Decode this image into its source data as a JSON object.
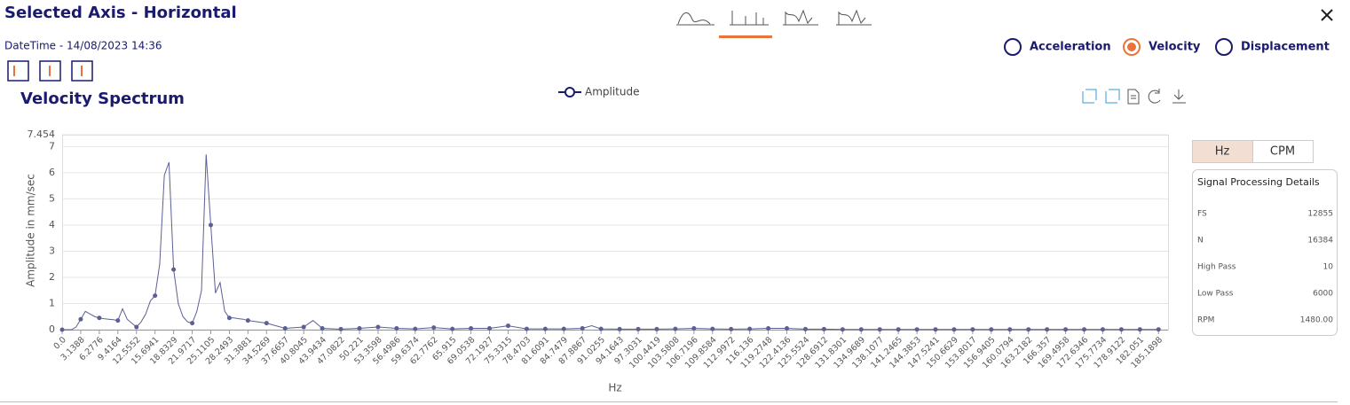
{
  "header": {
    "title": "Selected Axis - Horizontal",
    "datetime": "DateTime - 14/08/2023 14:36"
  },
  "measure_options": [
    {
      "label": "Acceleration",
      "selected": false
    },
    {
      "label": "Velocity",
      "selected": true
    },
    {
      "label": "Displacement",
      "selected": false
    }
  ],
  "unit_options": [
    {
      "label": "Hz",
      "selected": true
    },
    {
      "label": "CPM",
      "selected": false
    }
  ],
  "details": {
    "title": "Signal Processing Details",
    "rows": [
      [
        "FS",
        "12855"
      ],
      [
        "N",
        "16384"
      ],
      [
        "High Pass",
        "10"
      ],
      [
        "Low Pass",
        "6000"
      ],
      [
        "RPM",
        "1480.00"
      ]
    ]
  },
  "chart_data": {
    "type": "line",
    "title": "Velocity Spectrum",
    "x_label": "Hz",
    "y_label": "Amplitude in mm/sec",
    "grid": true,
    "x": [
      0,
      0.7847,
      1.5694,
      2.3541,
      3.1388,
      3.9235,
      4.7082,
      5.4929,
      6.2776,
      7.0623,
      7.8471,
      8.6318,
      9.4164,
      10.2011,
      10.9858,
      11.7705,
      12.5552,
      13.3399,
      14.1247,
      14.9094,
      15.6941,
      16.4788,
      17.2635,
      18.0482,
      18.8329,
      19.6176,
      20.4023,
      21.187,
      21.9717,
      22.7564,
      23.5411,
      24.3258,
      25.1105,
      25.8952,
      26.6799,
      27.4646,
      28.2493,
      29.034,
      29.8187,
      30.6034,
      31.3881,
      34.5269,
      37.6657,
      40.8045,
      42.3741,
      43.9434,
      47.0822,
      50.221,
      53.3598,
      56.4986,
      59.6374,
      62.7762,
      65.915,
      69.0538,
      72.1927,
      75.3315,
      78.4703,
      81.6091,
      84.7479,
      87.8867,
      89.4561,
      91.0255,
      94.1643,
      97.3031,
      100.4419,
      103.5808,
      106.7196,
      109.8584,
      112.9972,
      116.136,
      119.2748,
      122.4136,
      125.5524,
      128.6912,
      131.8301,
      134.9689,
      138.1077,
      141.2465,
      144.3853,
      147.5241,
      150.6629,
      153.8017,
      156.9405,
      160.0794,
      163.2182,
      166.357,
      169.4958,
      172.6346,
      175.7734,
      178.9122,
      182.051,
      185.1898
    ],
    "series": [
      {
        "name": "Amplitude",
        "color": "#5c5f95",
        "values": [
          0,
          0,
          0,
          0.1,
          0.4,
          0.7,
          0.6,
          0.5,
          0.45,
          0.42,
          0.4,
          0.38,
          0.35,
          0.8,
          0.4,
          0.25,
          0.1,
          0.3,
          0.6,
          1.1,
          1.3,
          2.5,
          5.9,
          6.4,
          2.3,
          1.0,
          0.5,
          0.3,
          0.25,
          0.7,
          1.5,
          6.7,
          4.0,
          1.4,
          1.8,
          0.7,
          0.45,
          0.45,
          0.42,
          0.4,
          0.35,
          0.25,
          0.05,
          0.1,
          0.35,
          0.05,
          0.02,
          0.05,
          0.1,
          0.05,
          0.03,
          0.08,
          0.03,
          0.05,
          0.05,
          0.15,
          0.03,
          0.03,
          0.03,
          0.05,
          0.15,
          0.03,
          0.02,
          0.02,
          0.02,
          0.03,
          0.05,
          0.03,
          0.02,
          0.03,
          0.05,
          0.05,
          0.02,
          0.02,
          0.01,
          0.01,
          0.01,
          0.01,
          0.01,
          0.01,
          0.01,
          0.01,
          0.01,
          0.01,
          0.01,
          0.01,
          0.01,
          0.01,
          0.01,
          0.01,
          0.01,
          0.01
        ]
      }
    ],
    "xlim": [
      0,
      186.8
    ],
    "ylim": [
      0,
      7.454
    ],
    "yticks": [
      0,
      1,
      2,
      3,
      4,
      5,
      6,
      7,
      7.454
    ],
    "xticks": [
      {
        "value": 0,
        "label": "0.0"
      },
      3.1388,
      6.2776,
      9.4164,
      12.5552,
      15.6941,
      18.8329,
      21.9717,
      25.1105,
      28.2493,
      31.3881,
      34.5269,
      37.6657,
      40.8045,
      43.9434,
      47.0822,
      50.221,
      53.3598,
      56.4986,
      59.6374,
      62.7762,
      65.915,
      69.0538,
      72.1927,
      75.3315,
      78.4703,
      81.6091,
      84.7479,
      87.8867,
      91.0255,
      94.1643,
      97.3031,
      100.4419,
      103.5808,
      106.7196,
      109.8584,
      112.9972,
      116.136,
      119.2748,
      122.4136,
      125.5524,
      128.6912,
      131.8301,
      134.9689,
      138.1077,
      141.2465,
      144.3853,
      147.5241,
      150.6629,
      153.8017,
      156.9405,
      160.0794,
      163.2182,
      166.357,
      169.4958,
      172.6346,
      175.7734,
      178.9122,
      182.051,
      185.1898
    ]
  }
}
